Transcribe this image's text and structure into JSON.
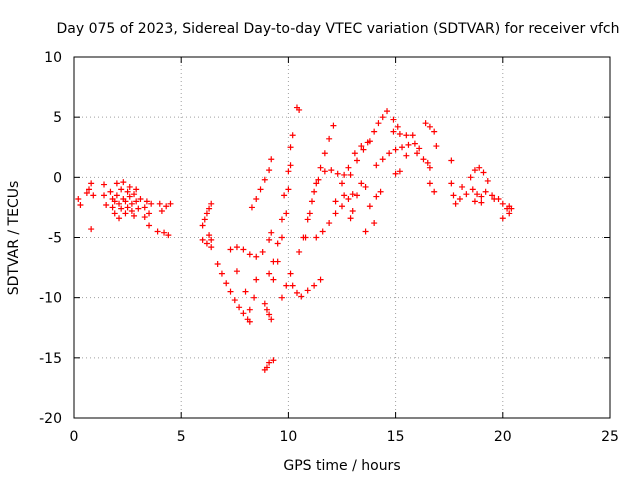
{
  "chart_data": {
    "type": "scatter",
    "title": "Day 075 of 2023, Sidereal Day-to-day VTEC variation (SDTVAR) for receiver vfch",
    "xlabel": "GPS time / hours",
    "ylabel": "SDTVAR / TECUs",
    "xlim": [
      0,
      25
    ],
    "ylim": [
      -20,
      10
    ],
    "xticks": [
      "0",
      "5",
      "10",
      "15",
      "20",
      "25"
    ],
    "yticks": [
      "10",
      "5",
      "0",
      "-5",
      "-10",
      "-15",
      "-20"
    ],
    "grid": true,
    "marker": "plus",
    "color": "#ff0000",
    "series": [
      {
        "name": "SDTVAR",
        "points": [
          [
            0.2,
            -1.8
          ],
          [
            0.3,
            -2.3
          ],
          [
            0.6,
            -1.3
          ],
          [
            0.7,
            -1.0
          ],
          [
            0.8,
            -0.5
          ],
          [
            0.8,
            -4.3
          ],
          [
            0.9,
            -1.5
          ],
          [
            1.4,
            -1.5
          ],
          [
            1.5,
            -2.3
          ],
          [
            1.4,
            -0.6
          ],
          [
            1.7,
            -1.2
          ],
          [
            1.8,
            -1.8
          ],
          [
            1.8,
            -2.5
          ],
          [
            1.9,
            -3.0
          ],
          [
            1.9,
            -2.0
          ],
          [
            2.0,
            -0.5
          ],
          [
            2.0,
            -1.5
          ],
          [
            2.1,
            -3.4
          ],
          [
            2.1,
            -2.2
          ],
          [
            2.2,
            -1.0
          ],
          [
            2.2,
            -2.6
          ],
          [
            2.3,
            -0.4
          ],
          [
            2.3,
            -1.8
          ],
          [
            2.4,
            -3.0
          ],
          [
            2.4,
            -2.0
          ],
          [
            2.5,
            -1.2
          ],
          [
            2.5,
            -2.5
          ],
          [
            2.6,
            -0.8
          ],
          [
            2.6,
            -1.6
          ],
          [
            2.7,
            -2.8
          ],
          [
            2.7,
            -2.2
          ],
          [
            2.8,
            -1.4
          ],
          [
            2.8,
            -3.2
          ],
          [
            2.9,
            -2.0
          ],
          [
            2.9,
            -1.0
          ],
          [
            3.0,
            -2.6
          ],
          [
            3.1,
            -1.8
          ],
          [
            3.3,
            -2.5
          ],
          [
            3.3,
            -3.3
          ],
          [
            3.4,
            -2.0
          ],
          [
            3.5,
            -3.0
          ],
          [
            3.5,
            -4.0
          ],
          [
            3.6,
            -2.2
          ],
          [
            3.9,
            -4.5
          ],
          [
            4.0,
            -2.2
          ],
          [
            4.1,
            -2.8
          ],
          [
            4.2,
            -4.6
          ],
          [
            4.3,
            -2.4
          ],
          [
            4.4,
            -4.8
          ],
          [
            4.5,
            -2.2
          ],
          [
            6.0,
            -4.0
          ],
          [
            6.1,
            -3.5
          ],
          [
            6.2,
            -3.0
          ],
          [
            6.3,
            -2.6
          ],
          [
            6.4,
            -2.2
          ],
          [
            6.0,
            -5.2
          ],
          [
            6.2,
            -5.5
          ],
          [
            6.4,
            -5.8
          ],
          [
            6.3,
            -4.8
          ],
          [
            6.4,
            -5.2
          ],
          [
            6.7,
            -7.2
          ],
          [
            6.9,
            -8.0
          ],
          [
            7.1,
            -8.8
          ],
          [
            7.3,
            -9.5
          ],
          [
            7.5,
            -10.2
          ],
          [
            7.7,
            -10.8
          ],
          [
            7.9,
            -11.3
          ],
          [
            8.1,
            -11.8
          ],
          [
            8.2,
            -12.0
          ],
          [
            7.3,
            -6.0
          ],
          [
            7.6,
            -5.8
          ],
          [
            7.9,
            -6.0
          ],
          [
            8.2,
            -6.4
          ],
          [
            8.5,
            -6.6
          ],
          [
            8.8,
            -6.2
          ],
          [
            9.1,
            -5.2
          ],
          [
            9.2,
            -4.6
          ],
          [
            7.6,
            -7.8
          ],
          [
            8.0,
            -9.5
          ],
          [
            8.2,
            -11.0
          ],
          [
            8.4,
            -10.0
          ],
          [
            8.5,
            -8.5
          ],
          [
            8.9,
            -10.5
          ],
          [
            9.0,
            -11.0
          ],
          [
            9.1,
            -11.4
          ],
          [
            9.2,
            -11.8
          ],
          [
            8.3,
            -2.5
          ],
          [
            8.5,
            -1.8
          ],
          [
            8.7,
            -1.0
          ],
          [
            8.9,
            -0.2
          ],
          [
            9.1,
            0.6
          ],
          [
            9.2,
            1.5
          ],
          [
            8.9,
            -16.0
          ],
          [
            9.0,
            -15.8
          ],
          [
            9.1,
            -15.4
          ],
          [
            9.3,
            -15.2
          ],
          [
            9.1,
            -8.0
          ],
          [
            9.3,
            -7.0
          ],
          [
            9.5,
            -5.5
          ],
          [
            9.7,
            -3.5
          ],
          [
            9.8,
            -1.5
          ],
          [
            10.0,
            0.5
          ],
          [
            10.1,
            2.5
          ],
          [
            10.2,
            3.5
          ],
          [
            9.3,
            -8.5
          ],
          [
            9.5,
            -7.0
          ],
          [
            9.7,
            -5.0
          ],
          [
            9.9,
            -3.0
          ],
          [
            10.0,
            -1.0
          ],
          [
            10.1,
            1.0
          ],
          [
            9.7,
            -10.0
          ],
          [
            9.9,
            -9.0
          ],
          [
            10.1,
            -8.0
          ],
          [
            10.2,
            -9.0
          ],
          [
            10.4,
            -9.6
          ],
          [
            10.6,
            -9.9
          ],
          [
            10.9,
            -9.4
          ],
          [
            11.2,
            -9.0
          ],
          [
            11.5,
            -8.5
          ],
          [
            10.5,
            -6.2
          ],
          [
            10.7,
            -5.0
          ],
          [
            10.9,
            -3.5
          ],
          [
            11.1,
            -2.0
          ],
          [
            11.3,
            -0.5
          ],
          [
            11.5,
            0.8
          ],
          [
            11.7,
            2.0
          ],
          [
            11.9,
            3.2
          ],
          [
            12.1,
            4.3
          ],
          [
            10.4,
            5.8
          ],
          [
            10.5,
            5.6
          ],
          [
            10.8,
            -5.0
          ],
          [
            11.0,
            -3.0
          ],
          [
            11.2,
            -1.2
          ],
          [
            11.4,
            -0.2
          ],
          [
            11.7,
            0.5
          ],
          [
            12.0,
            0.6
          ],
          [
            12.3,
            0.3
          ],
          [
            12.6,
            0.2
          ],
          [
            11.3,
            -5.0
          ],
          [
            11.6,
            -4.5
          ],
          [
            11.9,
            -3.8
          ],
          [
            12.2,
            -3.0
          ],
          [
            12.5,
            -2.4
          ],
          [
            12.8,
            -1.8
          ],
          [
            13.0,
            -1.4
          ],
          [
            12.2,
            -2.0
          ],
          [
            12.5,
            -0.5
          ],
          [
            12.8,
            0.8
          ],
          [
            13.1,
            2.0
          ],
          [
            13.4,
            2.6
          ],
          [
            13.7,
            2.9
          ],
          [
            12.6,
            -1.5
          ],
          [
            12.9,
            0.2
          ],
          [
            13.2,
            1.4
          ],
          [
            13.5,
            2.3
          ],
          [
            12.9,
            -3.4
          ],
          [
            13.2,
            -1.5
          ],
          [
            13.4,
            -0.5
          ],
          [
            13.6,
            -0.8
          ],
          [
            13.0,
            -2.8
          ],
          [
            13.8,
            3.0
          ],
          [
            14.0,
            3.8
          ],
          [
            14.2,
            4.5
          ],
          [
            14.4,
            5.0
          ],
          [
            14.6,
            5.5
          ],
          [
            14.9,
            4.8
          ],
          [
            15.1,
            4.2
          ],
          [
            13.6,
            -4.5
          ],
          [
            13.8,
            -2.4
          ],
          [
            14.1,
            -1.6
          ],
          [
            14.3,
            -1.2
          ],
          [
            14.0,
            -3.8
          ],
          [
            14.1,
            1.0
          ],
          [
            14.4,
            1.5
          ],
          [
            14.7,
            2.0
          ],
          [
            15.0,
            2.3
          ],
          [
            15.3,
            2.5
          ],
          [
            15.6,
            2.7
          ],
          [
            15.9,
            2.8
          ],
          [
            16.1,
            2.4
          ],
          [
            14.9,
            3.8
          ],
          [
            15.2,
            3.6
          ],
          [
            15.5,
            3.5
          ],
          [
            15.8,
            3.5
          ],
          [
            15.5,
            1.8
          ],
          [
            16.0,
            2.0
          ],
          [
            16.3,
            1.5
          ],
          [
            16.5,
            1.2
          ],
          [
            16.6,
            0.8
          ],
          [
            15.0,
            0.3
          ],
          [
            15.2,
            0.5
          ],
          [
            16.4,
            4.5
          ],
          [
            16.6,
            4.2
          ],
          [
            16.8,
            3.8
          ],
          [
            16.9,
            2.6
          ],
          [
            16.6,
            -0.5
          ],
          [
            16.8,
            -1.2
          ],
          [
            17.6,
            1.4
          ],
          [
            17.6,
            -0.5
          ],
          [
            17.7,
            -1.5
          ],
          [
            17.8,
            -2.2
          ],
          [
            18.0,
            -1.8
          ],
          [
            18.1,
            -0.8
          ],
          [
            18.3,
            -1.4
          ],
          [
            18.5,
            0.0
          ],
          [
            18.7,
            0.6
          ],
          [
            18.9,
            0.8
          ],
          [
            19.1,
            0.4
          ],
          [
            19.3,
            -0.3
          ],
          [
            18.6,
            -1.0
          ],
          [
            18.8,
            -1.4
          ],
          [
            19.0,
            -1.6
          ],
          [
            19.2,
            -1.2
          ],
          [
            18.7,
            -2.0
          ],
          [
            19.0,
            -2.1
          ],
          [
            19.5,
            -1.5
          ],
          [
            19.6,
            -1.8
          ],
          [
            19.8,
            -1.8
          ],
          [
            20.0,
            -2.2
          ],
          [
            20.2,
            -2.6
          ],
          [
            20.3,
            -3.0
          ],
          [
            20.0,
            -3.4
          ],
          [
            20.3,
            -2.4
          ],
          [
            20.4,
            -2.6
          ]
        ]
      }
    ]
  }
}
